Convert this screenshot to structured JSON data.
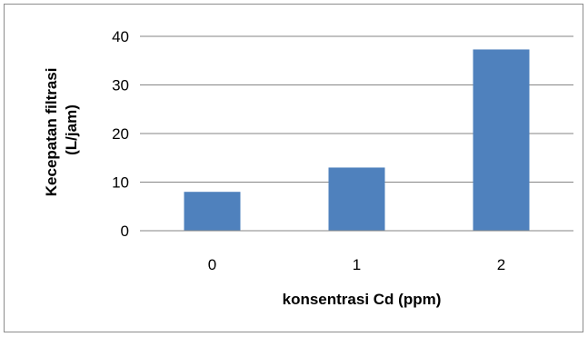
{
  "chart_data": {
    "type": "bar",
    "categories": [
      "0",
      "1",
      "2"
    ],
    "values": [
      8.0,
      13.0,
      37.3
    ],
    "title": "",
    "xlabel": "konsentrasi Cd (ppm)",
    "ylabel_lines": [
      "Kecepatan filtrasi",
      "(L/jam)"
    ],
    "ylim": [
      0,
      40
    ],
    "yticks": [
      "0",
      "10",
      "20",
      "30",
      "40"
    ],
    "grid": "horizontal",
    "legend": "none",
    "bar_color": "#4f81bd",
    "grid_color": "#868686"
  }
}
